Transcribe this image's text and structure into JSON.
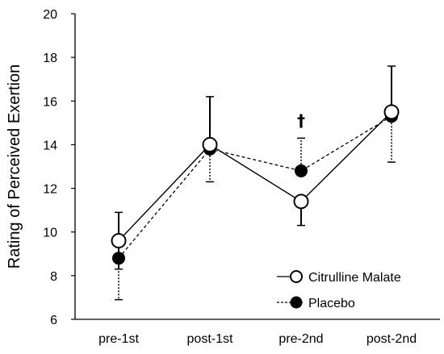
{
  "chart_data": {
    "type": "line",
    "ylabel": "Rating of Perceived Exertion",
    "xlabel": "",
    "categories": [
      "pre-1st",
      "post-1st",
      "pre-2nd",
      "post-2nd"
    ],
    "ylim": [
      6,
      20
    ],
    "yticks": [
      6,
      8,
      10,
      12,
      14,
      16,
      18,
      20
    ],
    "grid": false,
    "legend_position": "bottom-right",
    "series": [
      {
        "name": "Citrulline Malate",
        "values": [
          9.6,
          14.0,
          11.4,
          15.5
        ],
        "error": [
          1.3,
          2.2,
          1.1,
          2.1
        ],
        "error_direction": [
          "both",
          "up",
          "down",
          "up"
        ],
        "marker": "open-circle",
        "line_style": "solid",
        "color": "#000000"
      },
      {
        "name": "Placebo",
        "values": [
          8.8,
          13.8,
          12.8,
          15.3
        ],
        "error": [
          1.9,
          1.5,
          1.5,
          2.1
        ],
        "error_direction": [
          "down",
          "down",
          "up",
          "down"
        ],
        "marker": "filled-circle",
        "line_style": "dashed",
        "color": "#000000"
      }
    ],
    "annotations": [
      {
        "text": "†",
        "category": "pre-2nd",
        "y": 15.1
      }
    ]
  }
}
